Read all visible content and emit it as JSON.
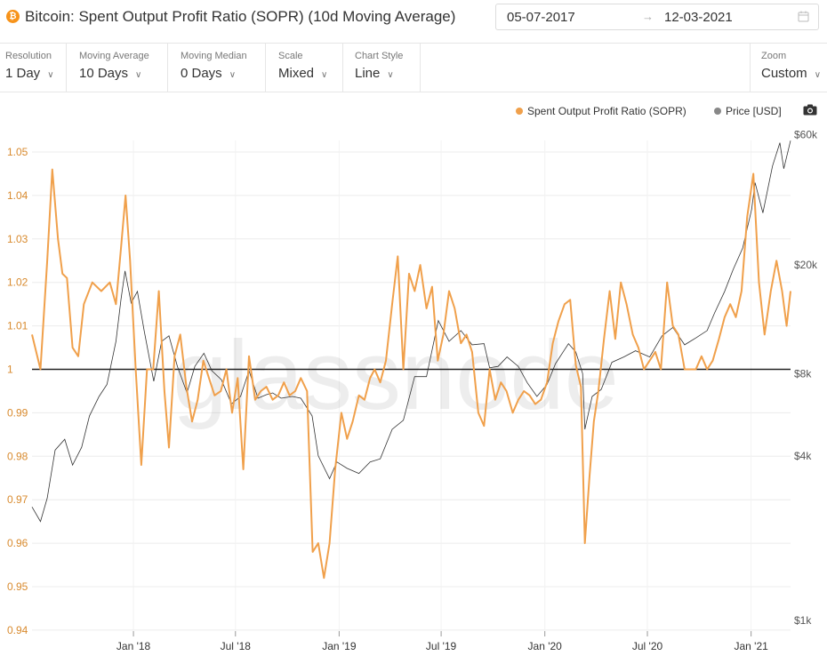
{
  "header": {
    "coin_symbol": "₿",
    "title": "Bitcoin: Spent Output Profit Ratio (SOPR) (10d Moving Average)",
    "date_start": "05-07-2017",
    "date_arrow": "→",
    "date_end": "12-03-2021"
  },
  "toolbar": [
    {
      "label": "Resolution",
      "value": "1 Day"
    },
    {
      "label": "Moving Average",
      "value": "10 Days"
    },
    {
      "label": "Moving Median",
      "value": "0 Days"
    },
    {
      "label": "Scale",
      "value": "Mixed"
    },
    {
      "label": "Chart Style",
      "value": "Line"
    }
  ],
  "zoom": {
    "label": "Zoom",
    "value": "Custom"
  },
  "legend": {
    "sopr": "Spent Output Profit Ratio (SOPR)",
    "price": "Price [USD]"
  },
  "colors": {
    "sopr": "#f0a04b",
    "price": "#333333",
    "baseline": "#222222",
    "left_axis": "#d88a2e"
  },
  "chart_data": {
    "type": "line",
    "watermark": "glassnode",
    "x_ticks": [
      "Jan '18",
      "Jul '18",
      "Jan '19",
      "Jul '19",
      "Jan '20",
      "Jul '20",
      "Jan '21"
    ],
    "y_left": {
      "ticks": [
        "1.05",
        "1.04",
        "1.03",
        "1.02",
        "1.01",
        "1",
        "0.99",
        "0.98",
        "0.97",
        "0.96",
        "0.95",
        "0.94"
      ],
      "range": [
        0.94,
        1.05
      ],
      "scale": "linear"
    },
    "y_right": {
      "ticks": [
        "$60k",
        "$20k",
        "$8k",
        "$4k",
        "$1k"
      ],
      "scale": "log"
    },
    "baseline": 1.0,
    "series": [
      {
        "name": "Spent Output Profit Ratio (SOPR)",
        "axis": "left",
        "x": [
          "2017-07-05",
          "2017-07-20",
          "2017-08-01",
          "2017-08-10",
          "2017-08-20",
          "2017-08-28",
          "2017-09-05",
          "2017-09-15",
          "2017-09-25",
          "2017-10-05",
          "2017-10-20",
          "2017-11-05",
          "2017-11-20",
          "2017-12-01",
          "2017-12-10",
          "2017-12-18",
          "2017-12-26",
          "2018-01-05",
          "2018-01-15",
          "2018-01-25",
          "2018-02-05",
          "2018-02-15",
          "2018-02-25",
          "2018-03-05",
          "2018-03-15",
          "2018-03-25",
          "2018-04-05",
          "2018-04-15",
          "2018-04-25",
          "2018-05-05",
          "2018-05-15",
          "2018-05-25",
          "2018-06-05",
          "2018-06-15",
          "2018-06-25",
          "2018-07-05",
          "2018-07-15",
          "2018-07-25",
          "2018-08-05",
          "2018-08-15",
          "2018-08-25",
          "2018-09-05",
          "2018-09-15",
          "2018-09-25",
          "2018-10-05",
          "2018-10-15",
          "2018-10-25",
          "2018-11-05",
          "2018-11-15",
          "2018-11-25",
          "2018-12-05",
          "2018-12-15",
          "2018-12-25",
          "2019-01-05",
          "2019-01-15",
          "2019-01-25",
          "2019-02-05",
          "2019-02-15",
          "2019-02-25",
          "2019-03-05",
          "2019-03-15",
          "2019-03-25",
          "2019-04-05",
          "2019-04-15",
          "2019-04-25",
          "2019-05-05",
          "2019-05-15",
          "2019-05-25",
          "2019-06-05",
          "2019-06-15",
          "2019-06-25",
          "2019-07-05",
          "2019-07-15",
          "2019-07-25",
          "2019-08-05",
          "2019-08-15",
          "2019-08-25",
          "2019-09-05",
          "2019-09-15",
          "2019-09-25",
          "2019-10-05",
          "2019-10-15",
          "2019-10-25",
          "2019-11-05",
          "2019-11-15",
          "2019-11-25",
          "2019-12-05",
          "2019-12-15",
          "2019-12-25",
          "2020-01-05",
          "2020-01-15",
          "2020-01-25",
          "2020-02-05",
          "2020-02-15",
          "2020-02-25",
          "2020-03-05",
          "2020-03-12",
          "2020-03-20",
          "2020-03-28",
          "2020-04-05",
          "2020-04-15",
          "2020-04-25",
          "2020-05-05",
          "2020-05-15",
          "2020-05-25",
          "2020-06-05",
          "2020-06-15",
          "2020-06-25",
          "2020-07-05",
          "2020-07-15",
          "2020-07-25",
          "2020-08-05",
          "2020-08-15",
          "2020-08-25",
          "2020-09-05",
          "2020-09-15",
          "2020-09-25",
          "2020-10-05",
          "2020-10-15",
          "2020-10-25",
          "2020-11-05",
          "2020-11-15",
          "2020-11-25",
          "2020-12-05",
          "2020-12-15",
          "2020-12-25",
          "2021-01-05",
          "2021-01-15",
          "2021-01-25",
          "2021-02-05",
          "2021-02-15",
          "2021-02-25",
          "2021-03-05",
          "2021-03-12"
        ],
        "values": [
          1.008,
          1.0,
          1.025,
          1.046,
          1.03,
          1.022,
          1.021,
          1.005,
          1.003,
          1.015,
          1.02,
          1.018,
          1.02,
          1.015,
          1.028,
          1.04,
          1.025,
          1.0,
          0.978,
          1.0,
          1.0,
          1.018,
          0.995,
          0.982,
          1.003,
          1.008,
          0.996,
          0.988,
          0.993,
          1.002,
          0.998,
          0.994,
          0.995,
          1.0,
          0.99,
          0.998,
          0.977,
          1.003,
          0.993,
          0.995,
          0.996,
          0.993,
          0.994,
          0.997,
          0.994,
          0.995,
          0.998,
          0.995,
          0.958,
          0.96,
          0.952,
          0.96,
          0.977,
          0.99,
          0.984,
          0.988,
          0.994,
          0.993,
          0.998,
          1.0,
          0.997,
          1.002,
          1.015,
          1.026,
          1.0,
          1.022,
          1.018,
          1.024,
          1.014,
          1.019,
          1.002,
          1.008,
          1.018,
          1.014,
          1.006,
          1.008,
          1.004,
          0.99,
          0.987,
          1.0,
          0.993,
          0.997,
          0.995,
          0.99,
          0.993,
          0.995,
          0.994,
          0.992,
          0.993,
          0.997,
          1.006,
          1.011,
          1.015,
          1.016,
          1.001,
          0.996,
          0.96,
          0.975,
          0.988,
          0.995,
          1.007,
          1.018,
          1.007,
          1.02,
          1.015,
          1.008,
          1.005,
          1.0,
          1.002,
          1.004,
          1.0,
          1.02,
          1.01,
          1.008,
          1.0,
          1.0,
          1.0,
          1.003,
          1.0,
          1.002,
          1.007,
          1.012,
          1.015,
          1.012,
          1.018,
          1.035,
          1.045,
          1.02,
          1.008,
          1.018,
          1.025,
          1.018,
          1.01,
          1.018
        ]
      },
      {
        "name": "Price [USD]",
        "axis": "right",
        "x": [
          "2017-07-05",
          "2017-07-20",
          "2017-08-01",
          "2017-08-15",
          "2017-09-01",
          "2017-09-15",
          "2017-10-01",
          "2017-10-15",
          "2017-11-01",
          "2017-11-15",
          "2017-12-01",
          "2017-12-10",
          "2017-12-17",
          "2017-12-28",
          "2018-01-08",
          "2018-01-20",
          "2018-02-06",
          "2018-02-20",
          "2018-03-05",
          "2018-03-20",
          "2018-04-06",
          "2018-04-20",
          "2018-05-06",
          "2018-05-20",
          "2018-06-06",
          "2018-06-24",
          "2018-07-10",
          "2018-07-25",
          "2018-08-10",
          "2018-08-25",
          "2018-09-05",
          "2018-09-20",
          "2018-10-10",
          "2018-10-25",
          "2018-11-14",
          "2018-11-25",
          "2018-12-15",
          "2018-12-28",
          "2019-01-15",
          "2019-02-05",
          "2019-02-25",
          "2019-03-15",
          "2019-04-05",
          "2019-04-25",
          "2019-05-15",
          "2019-06-05",
          "2019-06-26",
          "2019-07-15",
          "2019-08-05",
          "2019-08-25",
          "2019-09-15",
          "2019-09-25",
          "2019-10-10",
          "2019-10-26",
          "2019-11-15",
          "2019-12-01",
          "2019-12-18",
          "2020-01-05",
          "2020-01-20",
          "2020-02-12",
          "2020-02-25",
          "2020-03-08",
          "2020-03-12",
          "2020-03-25",
          "2020-04-10",
          "2020-04-29",
          "2020-05-20",
          "2020-06-10",
          "2020-07-05",
          "2020-07-27",
          "2020-08-15",
          "2020-09-05",
          "2020-09-25",
          "2020-10-15",
          "2020-10-28",
          "2020-11-15",
          "2020-11-30",
          "2020-12-17",
          "2021-01-02",
          "2021-01-08",
          "2021-01-22",
          "2021-02-08",
          "2021-02-21",
          "2021-02-28",
          "2021-03-12"
        ],
        "values": [
          2600,
          2300,
          2800,
          4200,
          4600,
          3700,
          4300,
          5600,
          6600,
          7300,
          10500,
          15000,
          19000,
          14500,
          16000,
          11500,
          7500,
          10500,
          11000,
          8500,
          6800,
          8500,
          9500,
          8200,
          7600,
          6200,
          6600,
          8200,
          6500,
          6700,
          6800,
          6500,
          6600,
          6500,
          5600,
          4000,
          3300,
          3800,
          3600,
          3450,
          3800,
          3900,
          5000,
          5400,
          7800,
          7800,
          12500,
          10500,
          11500,
          10200,
          10300,
          8400,
          8500,
          9200,
          8500,
          7400,
          6600,
          7300,
          8700,
          10300,
          9600,
          8000,
          5000,
          6600,
          7000,
          8800,
          9200,
          9700,
          9200,
          11000,
          11800,
          10200,
          10800,
          11500,
          13300,
          16000,
          19200,
          23000,
          32000,
          40000,
          31000,
          46000,
          56000,
          45000,
          57000
        ]
      }
    ]
  }
}
